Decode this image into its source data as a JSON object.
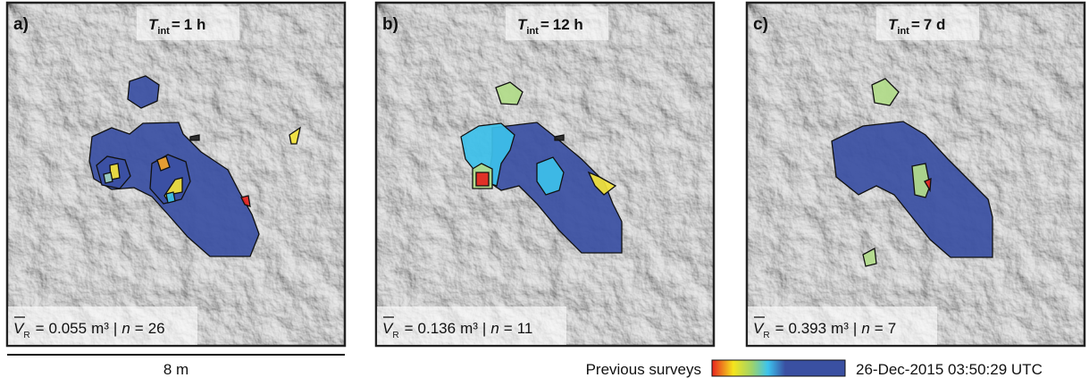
{
  "panels": [
    {
      "label": "a)",
      "t_int": "1 h",
      "volume": 0.055,
      "count": 26
    },
    {
      "label": "b)",
      "t_int": "12 h",
      "volume": 0.136,
      "count": 11
    },
    {
      "label": "c)",
      "t_int": "7 d",
      "volume": 0.393,
      "count": 7
    }
  ],
  "notation": {
    "t_symbol": "T",
    "t_subscript": "int",
    "equals": "=",
    "v_symbol": "V",
    "v_subscript": "R",
    "volume_unit": "m³",
    "separator": "|",
    "count_symbol": "n"
  },
  "scale_bar": {
    "label": "8 m"
  },
  "legend": {
    "start_label": "Previous surveys",
    "end_label": "26-Dec-2015 03:50:29 UTC"
  }
}
